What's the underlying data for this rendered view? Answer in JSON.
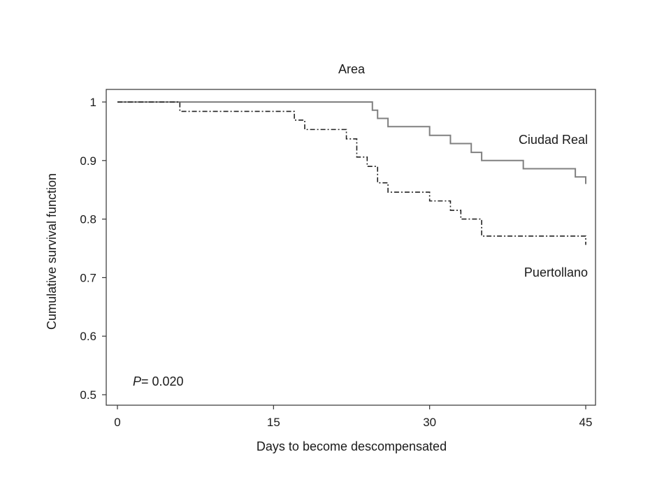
{
  "chart_data": {
    "type": "line",
    "step": true,
    "title": "Area",
    "xlabel": "Days to become descompensated",
    "ylabel": "Cumulative survival function",
    "xlim": [
      0,
      45
    ],
    "ylim": [
      0.5,
      1.0
    ],
    "xticks": [
      0,
      15,
      30,
      45
    ],
    "yticks": [
      0.5,
      0.6,
      0.7,
      0.8,
      0.9,
      1.0
    ],
    "xtick_labels": [
      "0",
      "15",
      "30",
      "45"
    ],
    "ytick_labels": [
      "0.5",
      "0.6",
      "0.7",
      "0.8",
      "0.9",
      "1"
    ],
    "grid": false,
    "series": [
      {
        "name": "Ciudad Real",
        "style": "solid",
        "color": "#808080",
        "x": [
          0,
          24,
          24.5,
          25,
          26,
          30,
          32,
          34,
          35,
          39,
          44,
          45
        ],
        "y": [
          1.0,
          1.0,
          0.986,
          0.972,
          0.958,
          0.943,
          0.929,
          0.914,
          0.9,
          0.886,
          0.872,
          0.86
        ]
      },
      {
        "name": "Puertollano",
        "style": "dash-dot",
        "color": "#222222",
        "x": [
          0,
          6,
          17,
          18,
          22,
          23,
          24,
          25,
          26,
          30,
          32,
          33,
          35,
          45
        ],
        "y": [
          1.0,
          0.984,
          0.969,
          0.953,
          0.937,
          0.906,
          0.89,
          0.862,
          0.846,
          0.831,
          0.815,
          0.8,
          0.771,
          0.756
        ]
      }
    ],
    "annotations": [
      {
        "text_italic": "P",
        "text": "= 0.020"
      }
    ]
  }
}
